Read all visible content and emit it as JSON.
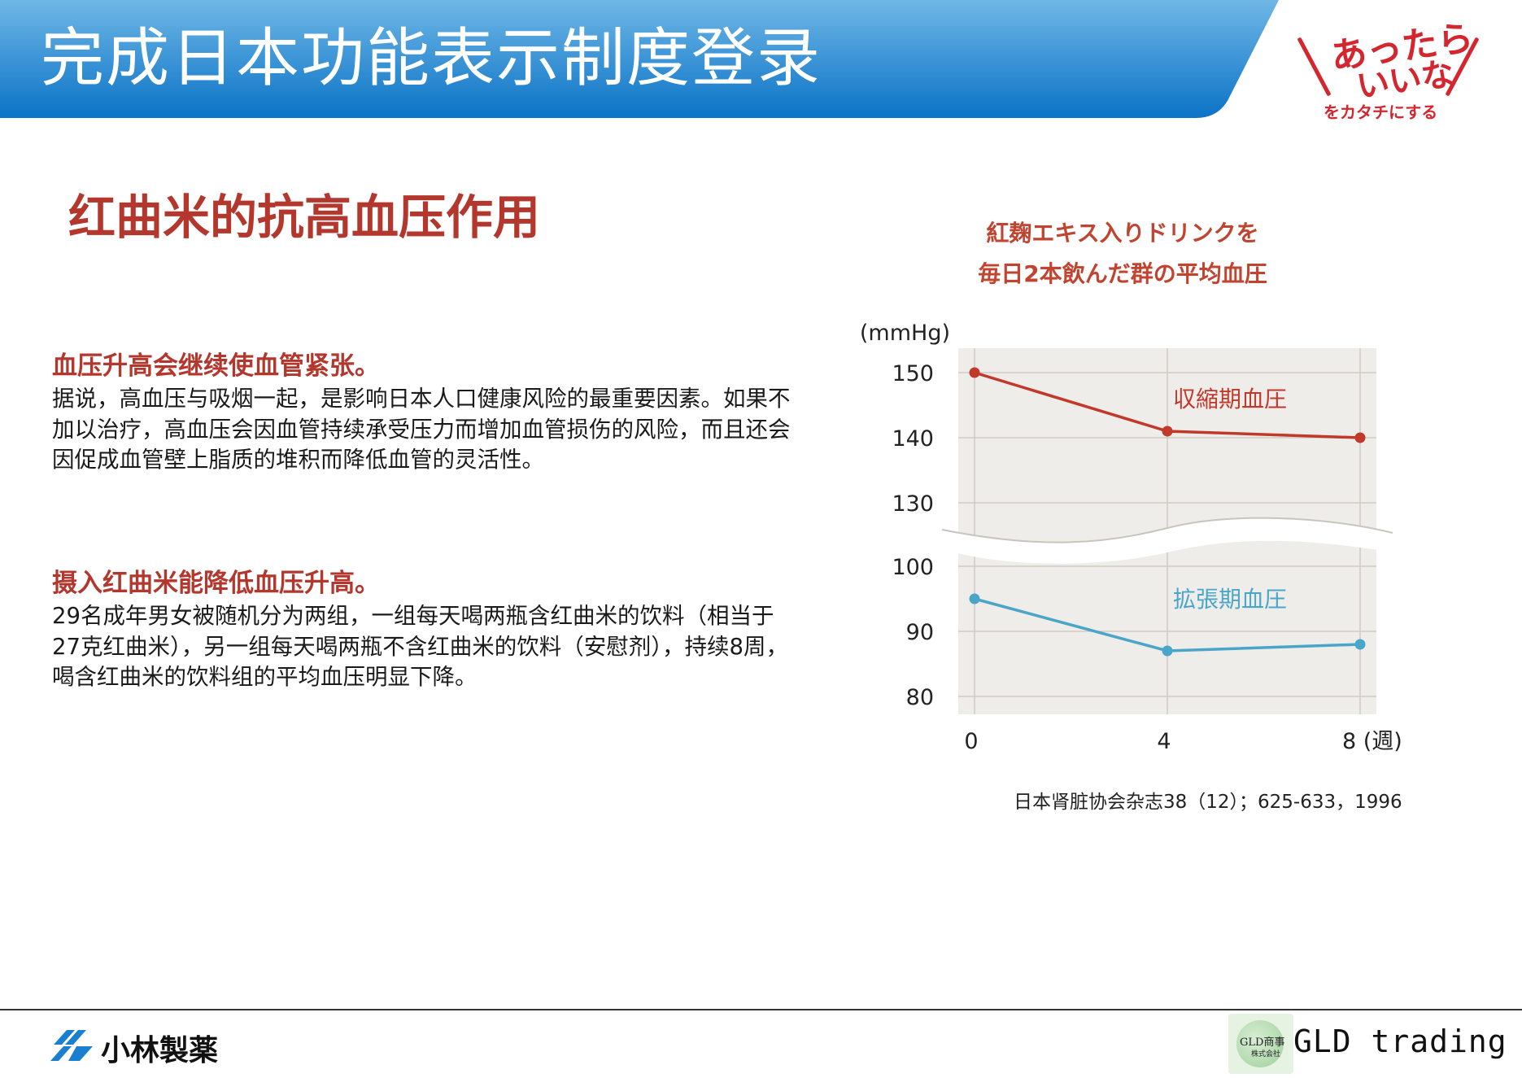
{
  "header": {
    "title": "完成日本功能表示制度登录",
    "brand_color": "#1a84cf"
  },
  "logo": {
    "line1": "あったら",
    "line2": "いいな",
    "line3": "をカタチにする",
    "color": "#d4262e"
  },
  "section_title": "红曲米的抗高血压作用",
  "paragraphs": [
    {
      "heading": "血压升高会继续使血管紧张。",
      "body": "据说，高血压与吸烟一起，是影响日本人口健康风险的最重要因素。如果不加以治疗，高血压会因血管持续承受压力而增加血管损伤的风险，而且还会因促成血管壁上脂质的堆积而降低血管的灵活性。"
    },
    {
      "heading": "摄入红曲米能降低血压升高。",
      "body": "29名成年男女被随机分为两组，一组每天喝两瓶含红曲米的饮料（相当于27克红曲米），另一组每天喝两瓶不含红曲米的饮料（安慰剂），持续8周，喝含红曲米的饮料组的平均血压明显下降。"
    }
  ],
  "chart_title": [
    "紅麹エキス入りドリンクを",
    "毎日2本飲んだ群の平均血圧"
  ],
  "source": "日本肾脏协会杂志38（12）；625-633，1996",
  "footer": {
    "left_logo_text": "小林製薬",
    "badge_line1": "GLD商事",
    "badge_line2": "株式会社",
    "right_text": "GLD trading"
  },
  "chart_data": {
    "type": "line",
    "ylabel": "(mmHg)",
    "x": [
      0,
      4,
      8
    ],
    "x_tick_labels": [
      "0",
      "4",
      "8 (週)"
    ],
    "y_ticks": [
      150,
      140,
      130,
      100,
      90,
      80
    ],
    "ylim_upper": [
      130,
      150
    ],
    "ylim_lower": [
      80,
      100
    ],
    "axis_break": "between 130 and 100",
    "grid": true,
    "background_color": "#efedea",
    "series": [
      {
        "name": "収縮期血圧",
        "values": [
          150,
          141,
          140
        ],
        "color": "#c0392b",
        "segment": "upper"
      },
      {
        "name": "拡張期血圧",
        "values": [
          95,
          87,
          88
        ],
        "color": "#4aa6c9",
        "segment": "lower"
      }
    ]
  }
}
